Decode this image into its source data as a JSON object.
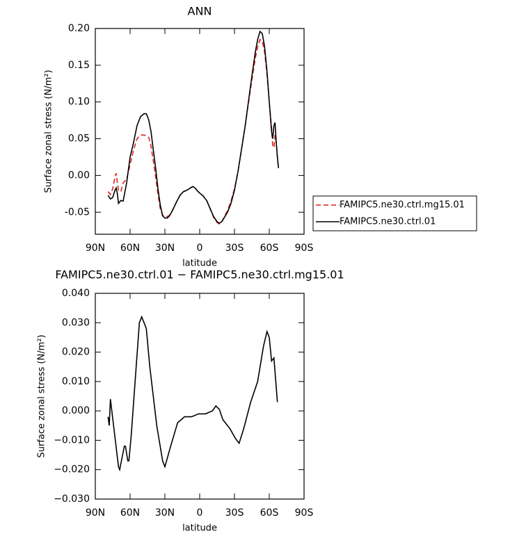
{
  "chart_data": [
    {
      "type": "line",
      "title": "ANN",
      "xlabel": "latitude",
      "ylabel": "Surface zonal stress (N/m²)",
      "xlim": [
        90,
        -90
      ],
      "xticks": [
        {
          "value": 90,
          "label": "90N"
        },
        {
          "value": 60,
          "label": "60N"
        },
        {
          "value": 30,
          "label": "30N"
        },
        0,
        {
          "value": -30,
          "label": "30S"
        },
        {
          "value": -60,
          "label": "60S"
        },
        {
          "value": -90,
          "label": "90S"
        }
      ],
      "ylim": [
        -0.08,
        0.2
      ],
      "yticks": [
        {
          "value": 0.2,
          "label": "0.20"
        },
        0.15,
        {
          "value": 0.1,
          "label": "0.10"
        },
        0.05,
        {
          "value": 0,
          "label": "0.00"
        },
        -0.05
      ],
      "x": [
        79,
        77,
        75,
        73,
        72,
        71,
        70,
        68,
        66,
        63,
        60,
        57,
        54,
        51,
        48,
        46,
        44,
        42,
        40,
        38,
        36,
        34,
        32,
        30,
        28,
        26,
        23,
        20,
        17,
        14,
        11,
        8,
        6,
        4,
        2,
        0,
        -3,
        -6,
        -9,
        -12,
        -15,
        -17,
        -19,
        -21,
        -24,
        -27,
        -30,
        -33,
        -36,
        -39,
        -42,
        -45,
        -48,
        -50,
        -52,
        -54,
        -56,
        -58,
        -60,
        -62,
        -63,
        -64,
        -65,
        -66,
        -67,
        -68
      ],
      "series": [
        {
          "name": "FAMIPC5.ne30.ctrl.mg15.01",
          "color": "#e0201c",
          "line_style": "dashed",
          "values": [
            -0.022,
            -0.026,
            -0.018,
            -0.002,
            0.003,
            -0.01,
            -0.02,
            -0.022,
            -0.01,
            -0.005,
            0.015,
            0.035,
            0.05,
            0.055,
            0.055,
            0.054,
            0.052,
            0.04,
            0.02,
            -0.002,
            -0.025,
            -0.045,
            -0.054,
            -0.056,
            -0.056,
            -0.054,
            -0.046,
            -0.036,
            -0.027,
            -0.022,
            -0.02,
            -0.017,
            -0.015,
            -0.017,
            -0.021,
            -0.024,
            -0.028,
            -0.034,
            -0.045,
            -0.057,
            -0.064,
            -0.066,
            -0.063,
            -0.057,
            -0.048,
            -0.035,
            -0.018,
            0.005,
            0.035,
            0.065,
            0.098,
            0.13,
            0.16,
            0.175,
            0.185,
            0.183,
            0.168,
            0.138,
            0.1,
            0.065,
            0.04,
            0.038,
            0.055,
            0.045,
            0.025,
            0.01
          ]
        },
        {
          "name": "FAMIPC5.ne30.ctrl.01",
          "color": "#000000",
          "line_style": "solid",
          "values": [
            -0.027,
            -0.032,
            -0.03,
            -0.02,
            -0.017,
            -0.025,
            -0.038,
            -0.034,
            -0.035,
            -0.01,
            0.025,
            0.045,
            0.068,
            0.08,
            0.084,
            0.084,
            0.076,
            0.06,
            0.035,
            0.01,
            -0.018,
            -0.04,
            -0.055,
            -0.058,
            -0.058,
            -0.055,
            -0.046,
            -0.036,
            -0.027,
            -0.022,
            -0.02,
            -0.017,
            -0.015,
            -0.017,
            -0.021,
            -0.024,
            -0.028,
            -0.034,
            -0.045,
            -0.056,
            -0.063,
            -0.065,
            -0.063,
            -0.058,
            -0.05,
            -0.038,
            -0.02,
            0.005,
            0.035,
            0.065,
            0.1,
            0.135,
            0.168,
            0.185,
            0.196,
            0.193,
            0.175,
            0.142,
            0.1,
            0.06,
            0.05,
            0.068,
            0.072,
            0.045,
            0.025,
            0.01
          ]
        }
      ]
    },
    {
      "type": "line",
      "title": "FAMIPC5.ne30.ctrl.01 − FAMIPC5.ne30.ctrl.mg15.01",
      "xlabel": "latitude",
      "ylabel": "Surface zonal stress (N/m²)",
      "xlim": [
        90,
        -90
      ],
      "xticks": [
        {
          "value": 90,
          "label": "90N"
        },
        {
          "value": 60,
          "label": "60N"
        },
        {
          "value": 30,
          "label": "30N"
        },
        0,
        {
          "value": -30,
          "label": "30S"
        },
        {
          "value": -60,
          "label": "60S"
        },
        {
          "value": -90,
          "label": "90S"
        }
      ],
      "ylim": [
        -0.03,
        0.04
      ],
      "yticks": [
        {
          "value": 0.04,
          "label": "0.040"
        },
        {
          "value": 0.03,
          "label": "0.030"
        },
        {
          "value": 0.02,
          "label": "0.020"
        },
        {
          "value": 0.01,
          "label": "0.010"
        },
        {
          "value": 0,
          "label": "0.000"
        },
        {
          "value": -0.01,
          "label": "−0.010"
        },
        {
          "value": -0.02,
          "label": "−0.020"
        },
        {
          "value": -0.03,
          "label": "−0.030"
        }
      ],
      "color": "#000000",
      "x": [
        79,
        78,
        77,
        70,
        69,
        65,
        64,
        62,
        61,
        59,
        52,
        50,
        46,
        43,
        37,
        32,
        30,
        25,
        19,
        13,
        7,
        1,
        -5,
        -11,
        -14,
        -17,
        -20,
        -26,
        -31,
        -34,
        -38,
        -44,
        -50,
        -55,
        -58,
        -60,
        -62,
        -64,
        -67
      ],
      "values": [
        -0.002,
        -0.005,
        0.004,
        -0.019,
        -0.02,
        -0.012,
        -0.012,
        -0.017,
        -0.017,
        -0.008,
        0.03,
        0.032,
        0.028,
        0.015,
        -0.005,
        -0.017,
        -0.019,
        -0.012,
        -0.004,
        -0.002,
        -0.002,
        -0.001,
        -0.001,
        0.0,
        0.0017,
        0.0005,
        -0.003,
        -0.006,
        -0.0095,
        -0.011,
        -0.006,
        0.003,
        0.01,
        0.022,
        0.027,
        0.025,
        0.017,
        0.018,
        0.003
      ]
    }
  ]
}
